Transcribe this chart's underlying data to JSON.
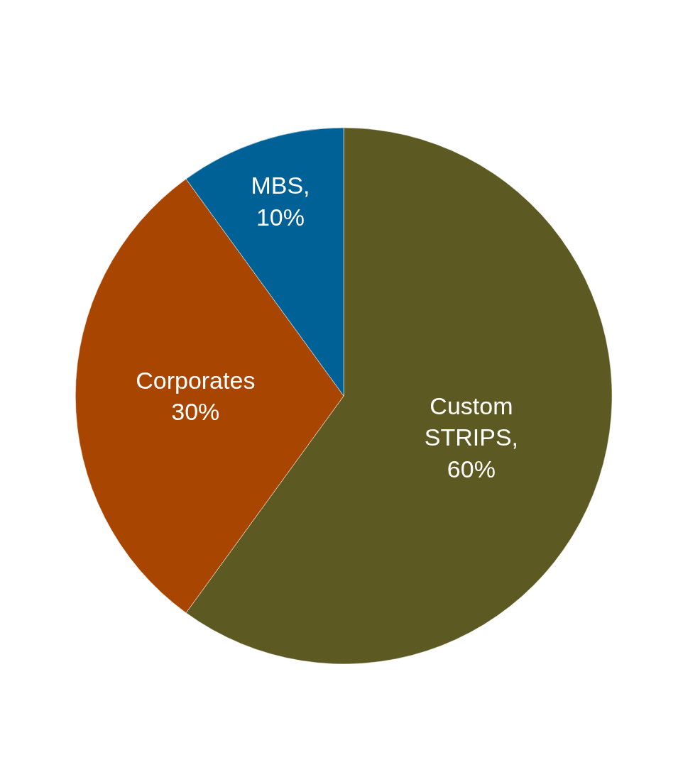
{
  "chart_data": {
    "type": "pie",
    "categories": [
      "Custom STRIPS",
      "Corporates",
      "MBS"
    ],
    "values": [
      60,
      30,
      10
    ],
    "colors": [
      "#5c5a22",
      "#a84500",
      "#006196"
    ],
    "value_labels": [
      ",\n60%",
      "\n30%",
      ",\n10%"
    ],
    "legend": false
  }
}
